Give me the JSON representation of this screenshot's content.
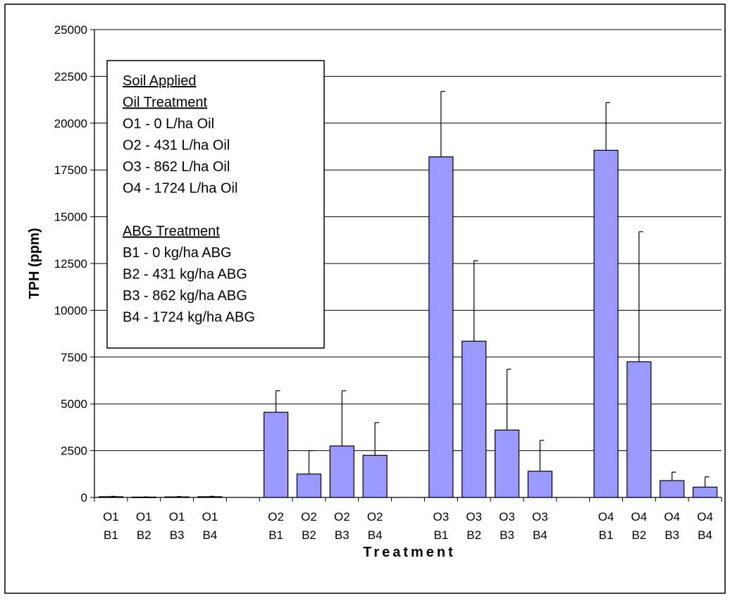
{
  "chart_data": {
    "type": "bar",
    "xlabel": "Treatment",
    "ylabel": "TPH (ppm)",
    "ylim": [
      0,
      25000
    ],
    "yticks": [
      0,
      2500,
      5000,
      7500,
      10000,
      12500,
      15000,
      17500,
      20000,
      22500,
      25000
    ],
    "grid": true,
    "bar_color": "#9999ff",
    "categories": [
      [
        "O1",
        "B1"
      ],
      [
        "O1",
        "B2"
      ],
      [
        "O1",
        "B3"
      ],
      [
        "O1",
        "B4"
      ],
      [
        "O2",
        "B1"
      ],
      [
        "O2",
        "B2"
      ],
      [
        "O2",
        "B3"
      ],
      [
        "O2",
        "B4"
      ],
      [
        "O3",
        "B1"
      ],
      [
        "O3",
        "B2"
      ],
      [
        "O3",
        "B3"
      ],
      [
        "O3",
        "B4"
      ],
      [
        "O4",
        "B1"
      ],
      [
        "O4",
        "B2"
      ],
      [
        "O4",
        "B3"
      ],
      [
        "O4",
        "B4"
      ]
    ],
    "values": [
      40,
      20,
      30,
      40,
      4550,
      1250,
      2750,
      2250,
      18200,
      8350,
      3600,
      1400,
      18550,
      7250,
      900,
      550
    ],
    "error_upper": [
      60,
      30,
      50,
      60,
      5700,
      2500,
      5700,
      4000,
      21700,
      12650,
      6850,
      3050,
      21100,
      14200,
      1350,
      1100
    ],
    "legend_placement": "top-left",
    "annotation": {
      "oil_heading": [
        "Soil Applied",
        "Oil Treatment"
      ],
      "oil_items": [
        "O1 - 0 L/ha Oil",
        "O2 - 431 L/ha Oil",
        "O3 - 862 L/ha Oil",
        "O4 - 1724 L/ha Oil"
      ],
      "abg_heading": "ABG Treatment",
      "abg_items": [
        "B1 - 0 kg/ha ABG",
        "B2 - 431 kg/ha ABG",
        "B3 - 862 kg/ha ABG",
        "B4 - 1724 kg/ha ABG"
      ]
    }
  }
}
